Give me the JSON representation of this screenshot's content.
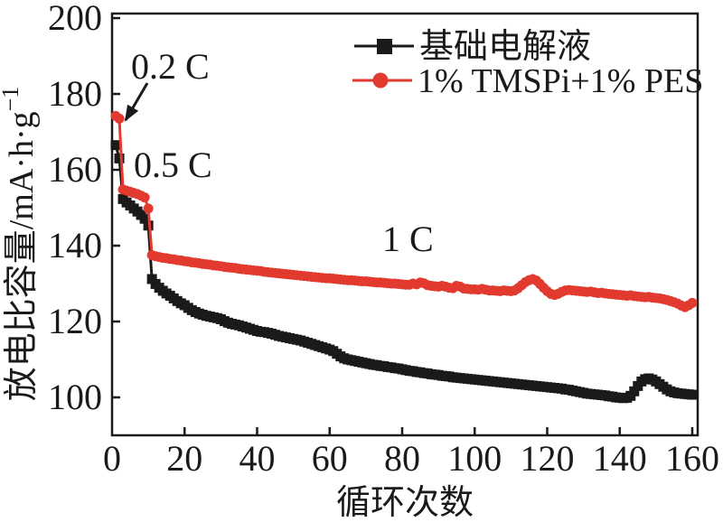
{
  "colors": {
    "background": "#ffffff",
    "axis": "#1a1a1a",
    "text": "#1a1a1a",
    "series_base": "#1a1a1a",
    "series_additive": "#e23a2e"
  },
  "chart_data": {
    "type": "line",
    "title": "",
    "xlabel": "循环次数",
    "ylabel": "放电比容量/mA·h·g⁻¹",
    "ylabel_base": "放电比容量/mA·h·g",
    "ylabel_superscript": "−1",
    "xlim": [
      0,
      161.5
    ],
    "ylim": [
      90,
      201.2
    ],
    "x_ticks": [
      0,
      20,
      40,
      60,
      80,
      100,
      120,
      140,
      160
    ],
    "y_ticks": [
      100,
      120,
      140,
      160,
      180,
      200
    ],
    "grid": false,
    "legend_position": "top-right-inside",
    "x_unit": "cycle",
    "x_start": 1,
    "annotations": [
      {
        "id": "rate-02c",
        "text": "0.2 C",
        "arrow": true
      },
      {
        "id": "rate-05c",
        "text": "0.5 C",
        "arrow": false
      },
      {
        "id": "rate-1c",
        "text": "1 C",
        "arrow": false
      }
    ],
    "series": [
      {
        "name": "基础电解液",
        "color": "#1a1a1a",
        "marker": "square",
        "values": [
          166.5,
          163.0,
          152.3,
          151.4,
          150.6,
          149.8,
          149.0,
          148.1,
          147.1,
          145.3,
          131.2,
          129.9,
          128.9,
          128.1,
          127.4,
          126.8,
          126.1,
          125.4,
          124.8,
          124.3,
          123.6,
          123.0,
          122.5,
          122.1,
          121.8,
          121.5,
          121.3,
          121.1,
          120.9,
          120.6,
          120.1,
          119.7,
          119.4,
          119.2,
          119.0,
          118.7,
          118.4,
          118.1,
          117.8,
          117.5,
          117.3,
          117.2,
          117.0,
          116.8,
          116.5,
          116.2,
          116.0,
          115.8,
          115.6,
          115.4,
          115.2,
          115.0,
          114.7,
          114.4,
          114.1,
          113.8,
          113.5,
          113.2,
          112.9,
          112.6,
          112.2,
          111.5,
          110.8,
          110.3,
          110.0,
          109.8,
          109.6,
          109.4,
          109.2,
          109.0,
          108.8,
          108.6,
          108.5,
          108.3,
          108.2,
          108.0,
          107.9,
          107.7,
          107.6,
          107.4,
          107.2,
          107.0,
          106.9,
          106.7,
          106.6,
          106.4,
          106.3,
          106.1,
          106.0,
          105.9,
          105.7,
          105.6,
          105.5,
          105.3,
          105.2,
          105.1,
          105.0,
          104.9,
          104.8,
          104.7,
          104.6,
          104.5,
          104.4,
          104.3,
          104.2,
          104.1,
          104.0,
          103.9,
          103.8,
          103.7,
          103.6,
          103.5,
          103.4,
          103.3,
          103.2,
          103.1,
          103.0,
          102.9,
          102.8,
          102.7,
          102.6,
          102.5,
          102.4,
          102.3,
          102.1,
          102.0,
          101.8,
          101.6,
          101.4,
          101.2,
          101.0,
          100.9,
          100.8,
          100.7,
          100.6,
          100.5,
          100.3,
          100.2,
          100.0,
          99.9,
          99.8,
          99.9,
          100.4,
          101.6,
          103.0,
          104.2,
          104.8,
          105.0,
          104.7,
          104.2,
          103.5,
          102.8,
          102.1,
          101.6,
          101.3,
          101.1,
          101.0,
          100.9,
          100.8,
          100.7
        ]
      },
      {
        "name": "1% TMSPi+1% PES",
        "color": "#e23a2e",
        "marker": "circle",
        "values": [
          174.2,
          173.5,
          154.8,
          154.5,
          154.2,
          153.9,
          153.6,
          153.2,
          152.7,
          149.8,
          137.5,
          137.2,
          137.0,
          136.8,
          136.7,
          136.5,
          136.4,
          136.2,
          136.1,
          135.9,
          135.8,
          135.6,
          135.5,
          135.4,
          135.2,
          135.1,
          135.0,
          134.8,
          134.7,
          134.6,
          134.4,
          134.3,
          134.2,
          134.1,
          133.9,
          133.8,
          133.7,
          133.6,
          133.5,
          133.4,
          133.3,
          133.1,
          133.0,
          132.9,
          132.8,
          132.7,
          132.6,
          132.5,
          132.4,
          132.3,
          132.2,
          132.1,
          132.0,
          131.9,
          131.8,
          131.7,
          131.6,
          131.5,
          131.4,
          131.4,
          131.3,
          131.2,
          131.1,
          131.0,
          130.9,
          130.9,
          130.8,
          130.7,
          130.6,
          130.6,
          130.5,
          130.4,
          130.3,
          130.3,
          130.2,
          130.1,
          130.0,
          130.0,
          129.9,
          129.8,
          129.7,
          129.7,
          130.0,
          129.8,
          130.3,
          130.1,
          129.6,
          129.4,
          129.3,
          129.2,
          129.4,
          129.2,
          128.9,
          128.8,
          129.4,
          129.2,
          128.7,
          128.6,
          128.5,
          128.5,
          128.4,
          128.6,
          128.4,
          128.2,
          128.2,
          128.1,
          128.0,
          128.2,
          128.1,
          128.0,
          128.2,
          128.8,
          129.6,
          130.4,
          130.9,
          131.2,
          130.8,
          129.9,
          128.9,
          128.0,
          127.3,
          127.0,
          127.3,
          127.8,
          128.2,
          128.3,
          128.2,
          128.1,
          128.0,
          127.9,
          127.8,
          127.9,
          127.7,
          127.5,
          127.6,
          127.4,
          127.3,
          127.2,
          127.1,
          127.0,
          126.9,
          126.8,
          126.9,
          126.7,
          126.6,
          126.5,
          126.4,
          126.5,
          126.3,
          126.2,
          126.1,
          125.9,
          125.7,
          125.4,
          125.1,
          124.7,
          124.2,
          123.8,
          124.3,
          124.9
        ]
      }
    ]
  }
}
